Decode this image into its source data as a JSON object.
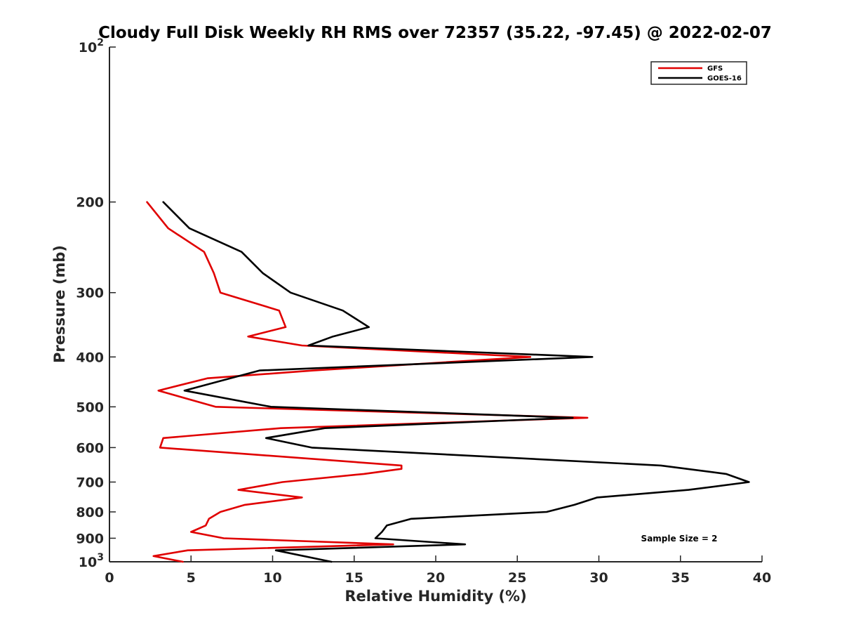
{
  "chart_data": {
    "type": "line",
    "title": "Cloudy Full Disk Weekly RH RMS over 72357 (35.22, -97.45) @ 2022-02-07",
    "xlabel": "Relative Humidity (%)",
    "ylabel": "Pressure (mb)",
    "xlim": [
      0,
      40
    ],
    "ylim": [
      100,
      1000
    ],
    "y_scale": "log",
    "y_reversed": true,
    "grid": false,
    "legend_position": "top-right",
    "x_ticks": [
      0,
      5,
      10,
      15,
      20,
      25,
      30,
      35,
      40
    ],
    "x_tick_labels": [
      "0",
      "5",
      "10",
      "15",
      "20",
      "25",
      "30",
      "35",
      "40"
    ],
    "y_ticks": [
      100,
      200,
      300,
      400,
      500,
      600,
      700,
      800,
      900,
      1000
    ],
    "y_tick_labels": [
      {
        "base": "10",
        "exp": "2"
      },
      {
        "base": "200",
        "exp": ""
      },
      {
        "base": "300",
        "exp": ""
      },
      {
        "base": "400",
        "exp": ""
      },
      {
        "base": "500",
        "exp": ""
      },
      {
        "base": "600",
        "exp": ""
      },
      {
        "base": "700",
        "exp": ""
      },
      {
        "base": "800",
        "exp": ""
      },
      {
        "base": "900",
        "exp": ""
      },
      {
        "base": "10",
        "exp": "3"
      }
    ],
    "annotation": "Sample Size = 2",
    "series": [
      {
        "name": "GFS",
        "color": "#e00000",
        "points": [
          [
            2.3,
            200
          ],
          [
            3.6,
            225
          ],
          [
            5.8,
            250
          ],
          [
            6.4,
            275
          ],
          [
            6.8,
            300
          ],
          [
            10.4,
            325
          ],
          [
            10.8,
            350
          ],
          [
            8.5,
            365
          ],
          [
            11.8,
            380
          ],
          [
            25.8,
            400
          ],
          [
            12.5,
            425
          ],
          [
            6.0,
            440
          ],
          [
            3.0,
            465
          ],
          [
            6.5,
            500
          ],
          [
            29.3,
            525
          ],
          [
            10.5,
            550
          ],
          [
            3.3,
            575
          ],
          [
            3.1,
            600
          ],
          [
            17.9,
            650
          ],
          [
            17.9,
            660
          ],
          [
            15.6,
            675
          ],
          [
            10.6,
            700
          ],
          [
            7.9,
            725
          ],
          [
            11.8,
            750
          ],
          [
            8.3,
            775
          ],
          [
            6.8,
            800
          ],
          [
            6.1,
            825
          ],
          [
            5.9,
            850
          ],
          [
            5.0,
            875
          ],
          [
            7.0,
            900
          ],
          [
            17.4,
            925
          ],
          [
            4.8,
            950
          ],
          [
            2.7,
            975
          ],
          [
            4.5,
            1000
          ]
        ]
      },
      {
        "name": "GOES-16",
        "color": "#000000",
        "points": [
          [
            3.3,
            200
          ],
          [
            4.9,
            225
          ],
          [
            8.1,
            250
          ],
          [
            9.4,
            275
          ],
          [
            11.1,
            300
          ],
          [
            14.3,
            325
          ],
          [
            15.9,
            350
          ],
          [
            13.7,
            365
          ],
          [
            12.2,
            380
          ],
          [
            29.6,
            400
          ],
          [
            9.2,
            425
          ],
          [
            7.4,
            440
          ],
          [
            4.6,
            465
          ],
          [
            9.9,
            500
          ],
          [
            28.4,
            525
          ],
          [
            13.2,
            550
          ],
          [
            9.6,
            575
          ],
          [
            12.4,
            600
          ],
          [
            33.8,
            650
          ],
          [
            37.8,
            675
          ],
          [
            39.2,
            700
          ],
          [
            35.5,
            725
          ],
          [
            29.9,
            750
          ],
          [
            28.5,
            775
          ],
          [
            26.8,
            800
          ],
          [
            18.5,
            825
          ],
          [
            17.0,
            850
          ],
          [
            16.7,
            875
          ],
          [
            16.3,
            900
          ],
          [
            21.8,
            925
          ],
          [
            10.2,
            950
          ],
          [
            13.6,
            1000
          ]
        ]
      }
    ]
  }
}
